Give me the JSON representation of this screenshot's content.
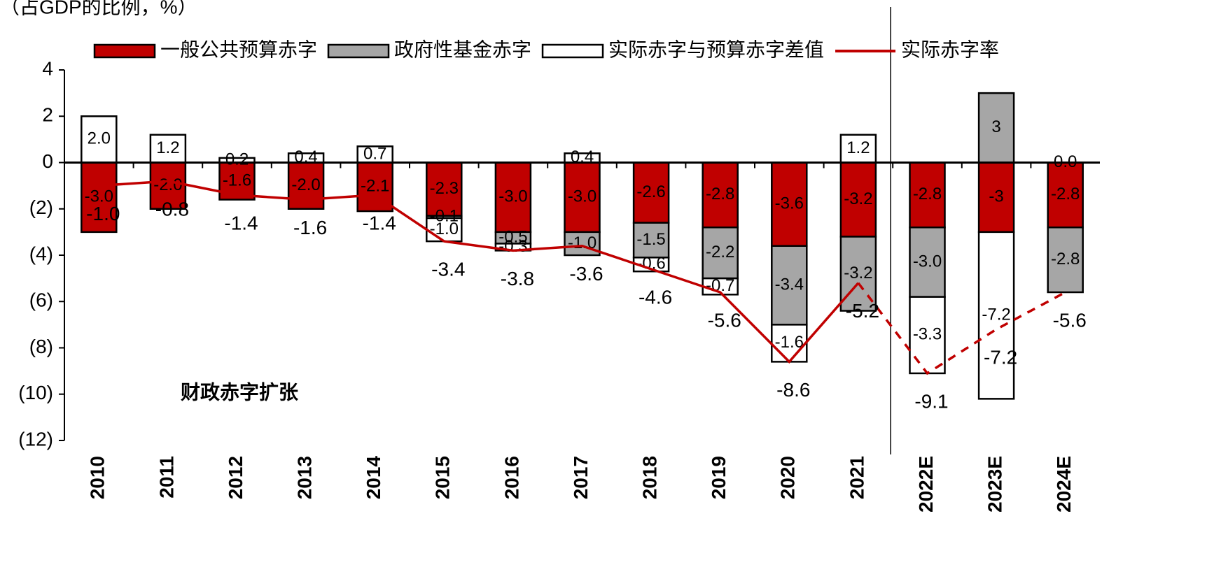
{
  "chart_data": {
    "type": "bar",
    "y_axis_label": "（占GDP的比例，%）",
    "annotation": "财政赤字扩张",
    "categories": [
      "2010",
      "2011",
      "2012",
      "2013",
      "2014",
      "2015",
      "2016",
      "2017",
      "2018",
      "2019",
      "2020",
      "2021",
      "2022E",
      "2023E",
      "2024E"
    ],
    "forecast_from": 12,
    "series": [
      {
        "name": "一般公共预算赤字",
        "type": "bar",
        "color": "#c00000",
        "label_color": "#ffffff",
        "values": [
          -3.0,
          -2.0,
          -1.6,
          -2.0,
          -2.1,
          -2.3,
          -3.0,
          -3.0,
          -2.6,
          -2.8,
          -3.6,
          -3.2,
          -2.8,
          -3,
          -2.8
        ],
        "value_labels": [
          "-3.0",
          "-2.0",
          "-1.6",
          "-2.0",
          "-2.1",
          "-2.3",
          "-3.0",
          "-3.0",
          "-2.6",
          "-2.8",
          "-3.6",
          "-3.2",
          "-2.8",
          "-3",
          "-2.8"
        ]
      },
      {
        "name": "政府性基金赤字",
        "type": "bar",
        "color": "#a6a6a6",
        "label_color": "#000000",
        "values": [
          null,
          null,
          null,
          null,
          null,
          -0.1,
          -0.5,
          -1.0,
          -1.5,
          -2.2,
          -3.4,
          -3.2,
          -3.0,
          3,
          -2.8
        ],
        "value_labels": [
          null,
          null,
          null,
          null,
          null,
          "-0.1",
          "-0.5",
          "-1.0",
          "-1.5",
          "-2.2",
          "-3.4",
          "-3.2",
          "-3.0",
          "3",
          "-2.8"
        ]
      },
      {
        "name": "实际赤字与预算赤字差值",
        "type": "bar",
        "color": "#ffffff",
        "label_color": "#000000",
        "values": [
          2.0,
          1.2,
          0.2,
          0.4,
          0.7,
          -1.0,
          -0.3,
          0.4,
          -0.6,
          -0.7,
          -1.6,
          1.2,
          -3.3,
          -7.2,
          0.0
        ],
        "value_labels": [
          "2.0",
          "1.2",
          "0.2",
          "0.4",
          "0.7",
          "-1.0",
          "-0.3",
          "0.4",
          "-0.6",
          "-0.7",
          "-1.6",
          "1.2",
          "-3.3",
          "-7.2",
          "0.0"
        ]
      },
      {
        "name": "实际赤字率",
        "type": "line",
        "color": "#c00000",
        "label_color": "#c00000",
        "values": [
          -1.0,
          -0.8,
          -1.4,
          -1.6,
          -1.4,
          -3.4,
          -3.8,
          -3.6,
          -4.6,
          -5.6,
          -8.6,
          -5.2,
          -9.1,
          -7.2,
          -5.6
        ],
        "value_labels": [
          "-1.0",
          "-0.8",
          "-1.4",
          "-1.6",
          "-1.4",
          "-3.4",
          "-3.8",
          "-3.6",
          "-4.6",
          "-5.6",
          "-8.6",
          "-5.2",
          "-9.1",
          "-7.2",
          "-5.6"
        ]
      }
    ],
    "ylim": [
      -12,
      4
    ],
    "yticks": [
      4,
      2,
      0,
      {
        "value": -2,
        "label": "(2)"
      },
      {
        "value": -4,
        "label": "(4)"
      },
      {
        "value": -6,
        "label": "(6)"
      },
      {
        "value": -8,
        "label": "(8)"
      },
      {
        "value": -10,
        "label": "(10)"
      },
      {
        "value": -12,
        "label": "(12)"
      }
    ]
  }
}
